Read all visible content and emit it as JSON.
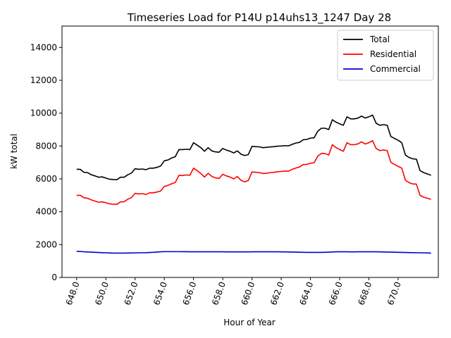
{
  "chart_data": {
    "type": "line",
    "title": "Timeseries Load for P14U p14uhs13_1247  Day 28",
    "xlabel": "Hour of Year",
    "ylabel": "kW total",
    "xlim": [
      647.0,
      672.75
    ],
    "ylim": [
      0,
      15300
    ],
    "xticks": [
      648,
      650,
      652,
      654,
      656,
      658,
      660,
      662,
      664,
      666,
      668,
      670
    ],
    "xtick_labels": [
      "648.0",
      "650.0",
      "652.0",
      "654.0",
      "656.0",
      "658.0",
      "660.0",
      "662.0",
      "664.0",
      "666.0",
      "668.0",
      "670.0"
    ],
    "yticks": [
      0,
      2000,
      4000,
      6000,
      8000,
      10000,
      12000,
      14000
    ],
    "ytick_labels": [
      "0",
      "2000",
      "4000",
      "6000",
      "8000",
      "10000",
      "12000",
      "14000"
    ],
    "legend_position": "top-right",
    "x_start": 648.0,
    "x_step": 0.25,
    "series": [
      {
        "name": "Total",
        "color": "#000000",
        "values": [
          6580,
          6580,
          6400,
          6380,
          6250,
          6180,
          6100,
          6120,
          6050,
          5980,
          5960,
          5950,
          6100,
          6100,
          6250,
          6350,
          6620,
          6580,
          6600,
          6560,
          6650,
          6650,
          6700,
          6780,
          7100,
          7150,
          7270,
          7350,
          7780,
          7780,
          7800,
          7780,
          8200,
          8050,
          7900,
          7680,
          7900,
          7700,
          7640,
          7620,
          7850,
          7750,
          7680,
          7580,
          7700,
          7500,
          7420,
          7480,
          7980,
          7960,
          7950,
          7900,
          7920,
          7940,
          7960,
          7990,
          8000,
          8020,
          8010,
          8100,
          8180,
          8220,
          8380,
          8400,
          8480,
          8500,
          8900,
          9080,
          9080,
          9000,
          9600,
          9450,
          9350,
          9260,
          9780,
          9650,
          9650,
          9700,
          9820,
          9700,
          9780,
          9880,
          9380,
          9260,
          9300,
          9260,
          8580,
          8460,
          8350,
          8200,
          7450,
          7300,
          7220,
          7200,
          6500,
          6380,
          6300,
          6220
        ]
      },
      {
        "name": "Residential",
        "color": "#ff0000",
        "values": [
          4990,
          5000,
          4850,
          4820,
          4720,
          4650,
          4580,
          4600,
          4550,
          4480,
          4460,
          4450,
          4600,
          4610,
          4760,
          4860,
          5120,
          5080,
          5100,
          5050,
          5150,
          5150,
          5200,
          5260,
          5540,
          5600,
          5700,
          5780,
          6210,
          6200,
          6240,
          6220,
          6650,
          6500,
          6320,
          6110,
          6340,
          6150,
          6060,
          6030,
          6280,
          6180,
          6110,
          6000,
          6140,
          5910,
          5820,
          5900,
          6420,
          6400,
          6380,
          6330,
          6340,
          6380,
          6400,
          6430,
          6450,
          6470,
          6470,
          6580,
          6660,
          6720,
          6870,
          6880,
          6950,
          6980,
          7380,
          7550,
          7540,
          7450,
          8080,
          7900,
          7790,
          7680,
          8200,
          8080,
          8080,
          8130,
          8250,
          8120,
          8200,
          8320,
          7840,
          7720,
          7760,
          7720,
          7010,
          6880,
          6760,
          6650,
          5920,
          5770,
          5690,
          5680,
          5000,
          4880,
          4820,
          4750
        ]
      },
      {
        "name": "Commercial",
        "color": "#0000cc",
        "values": [
          1590,
          1580,
          1560,
          1550,
          1540,
          1530,
          1520,
          1510,
          1500,
          1490,
          1480,
          1480,
          1480,
          1480,
          1485,
          1490,
          1495,
          1500,
          1505,
          1510,
          1520,
          1530,
          1545,
          1560,
          1570,
          1570,
          1570,
          1570,
          1570,
          1565,
          1565,
          1560,
          1560,
          1560,
          1560,
          1560,
          1560,
          1560,
          1560,
          1560,
          1560,
          1555,
          1555,
          1555,
          1555,
          1555,
          1555,
          1555,
          1560,
          1560,
          1560,
          1560,
          1560,
          1560,
          1560,
          1560,
          1555,
          1555,
          1550,
          1545,
          1540,
          1535,
          1530,
          1525,
          1525,
          1525,
          1525,
          1525,
          1530,
          1540,
          1550,
          1560,
          1560,
          1560,
          1560,
          1555,
          1555,
          1560,
          1560,
          1560,
          1560,
          1560,
          1560,
          1555,
          1550,
          1545,
          1540,
          1535,
          1530,
          1525,
          1520,
          1515,
          1510,
          1505,
          1500,
          1495,
          1490,
          1480
        ]
      }
    ]
  }
}
